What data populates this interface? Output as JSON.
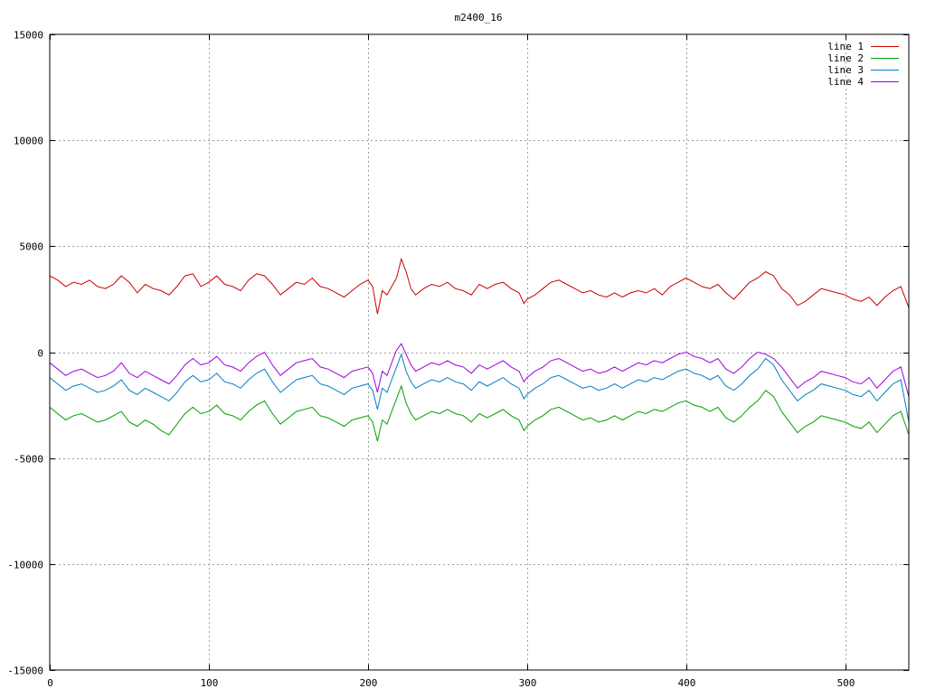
{
  "chart_data": {
    "type": "line",
    "title": "m2400_16",
    "xlabel": "",
    "ylabel": "",
    "xlim": [
      0,
      540
    ],
    "ylim": [
      -15000,
      15000
    ],
    "x_ticks": [
      0,
      100,
      200,
      300,
      400,
      500
    ],
    "y_ticks": [
      15000,
      10000,
      5000,
      0,
      -5000,
      -10000,
      -15000
    ],
    "grid": true,
    "legend_position": "top-right",
    "series": [
      {
        "name": "line 1",
        "color": "#cc0000",
        "x": [
          0,
          5,
          10,
          15,
          20,
          25,
          30,
          35,
          40,
          45,
          50,
          55,
          60,
          65,
          70,
          75,
          80,
          85,
          90,
          95,
          100,
          105,
          110,
          115,
          120,
          125,
          130,
          135,
          140,
          145,
          150,
          155,
          160,
          165,
          170,
          175,
          180,
          185,
          190,
          195,
          200,
          203,
          206,
          209,
          212,
          215,
          218,
          221,
          224,
          227,
          230,
          235,
          240,
          245,
          250,
          255,
          260,
          265,
          270,
          275,
          280,
          285,
          290,
          295,
          298,
          300,
          305,
          310,
          315,
          320,
          325,
          330,
          335,
          340,
          345,
          350,
          355,
          360,
          365,
          370,
          375,
          380,
          385,
          390,
          395,
          400,
          405,
          410,
          415,
          420,
          425,
          430,
          435,
          440,
          445,
          450,
          455,
          460,
          465,
          470,
          475,
          480,
          485,
          490,
          495,
          500,
          505,
          510,
          515,
          520,
          525,
          530,
          535,
          540
        ],
        "y": [
          3600,
          3400,
          3100,
          3300,
          3200,
          3400,
          3100,
          3000,
          3200,
          3600,
          3300,
          2800,
          3200,
          3000,
          2900,
          2700,
          3100,
          3600,
          3700,
          3100,
          3300,
          3600,
          3200,
          3100,
          2900,
          3400,
          3700,
          3600,
          3200,
          2700,
          3000,
          3300,
          3200,
          3500,
          3100,
          3000,
          2800,
          2600,
          2900,
          3200,
          3400,
          3100,
          1800,
          2900,
          2700,
          3100,
          3500,
          4400,
          3800,
          3000,
          2700,
          3000,
          3200,
          3100,
          3300,
          3000,
          2900,
          2700,
          3200,
          3000,
          3200,
          3300,
          3000,
          2800,
          2300,
          2500,
          2700,
          3000,
          3300,
          3400,
          3200,
          3000,
          2800,
          2900,
          2700,
          2600,
          2800,
          2600,
          2800,
          2900,
          2800,
          3000,
          2700,
          3100,
          3300,
          3500,
          3300,
          3100,
          3000,
          3200,
          2800,
          2500,
          2900,
          3300,
          3500,
          3800,
          3600,
          3000,
          2700,
          2200,
          2400,
          2700,
          3000,
          2900,
          2800,
          2700,
          2500,
          2400,
          2600,
          2200,
          2600,
          2900,
          3100,
          2100
        ]
      },
      {
        "name": "line 2",
        "color": "#00a000",
        "x": [
          0,
          5,
          10,
          15,
          20,
          25,
          30,
          35,
          40,
          45,
          50,
          55,
          60,
          65,
          70,
          75,
          80,
          85,
          90,
          95,
          100,
          105,
          110,
          115,
          120,
          125,
          130,
          135,
          140,
          145,
          150,
          155,
          160,
          165,
          170,
          175,
          180,
          185,
          190,
          195,
          200,
          203,
          206,
          209,
          212,
          215,
          218,
          221,
          224,
          227,
          230,
          235,
          240,
          245,
          250,
          255,
          260,
          265,
          270,
          275,
          280,
          285,
          290,
          295,
          298,
          300,
          305,
          310,
          315,
          320,
          325,
          330,
          335,
          340,
          345,
          350,
          355,
          360,
          365,
          370,
          375,
          380,
          385,
          390,
          395,
          400,
          405,
          410,
          415,
          420,
          425,
          430,
          435,
          440,
          445,
          450,
          455,
          460,
          465,
          470,
          475,
          480,
          485,
          490,
          495,
          500,
          505,
          510,
          515,
          520,
          525,
          530,
          535,
          540
        ],
        "y": [
          -2600,
          -2900,
          -3200,
          -3000,
          -2900,
          -3100,
          -3300,
          -3200,
          -3000,
          -2800,
          -3300,
          -3500,
          -3200,
          -3400,
          -3700,
          -3900,
          -3400,
          -2900,
          -2600,
          -2900,
          -2800,
          -2500,
          -2900,
          -3000,
          -3200,
          -2800,
          -2500,
          -2300,
          -2900,
          -3400,
          -3100,
          -2800,
          -2700,
          -2600,
          -3000,
          -3100,
          -3300,
          -3500,
          -3200,
          -3100,
          -3000,
          -3300,
          -4200,
          -3200,
          -3400,
          -2800,
          -2200,
          -1600,
          -2400,
          -2900,
          -3200,
          -3000,
          -2800,
          -2900,
          -2700,
          -2900,
          -3000,
          -3300,
          -2900,
          -3100,
          -2900,
          -2700,
          -3000,
          -3200,
          -3700,
          -3500,
          -3200,
          -3000,
          -2700,
          -2600,
          -2800,
          -3000,
          -3200,
          -3100,
          -3300,
          -3200,
          -3000,
          -3200,
          -3000,
          -2800,
          -2900,
          -2700,
          -2800,
          -2600,
          -2400,
          -2300,
          -2500,
          -2600,
          -2800,
          -2600,
          -3100,
          -3300,
          -3000,
          -2600,
          -2300,
          -1800,
          -2100,
          -2800,
          -3300,
          -3800,
          -3500,
          -3300,
          -3000,
          -3100,
          -3200,
          -3300,
          -3500,
          -3600,
          -3300,
          -3800,
          -3400,
          -3000,
          -2800,
          -3900
        ]
      },
      {
        "name": "line 3",
        "color": "#0080c0",
        "x": [
          0,
          5,
          10,
          15,
          20,
          25,
          30,
          35,
          40,
          45,
          50,
          55,
          60,
          65,
          70,
          75,
          80,
          85,
          90,
          95,
          100,
          105,
          110,
          115,
          120,
          125,
          130,
          135,
          140,
          145,
          150,
          155,
          160,
          165,
          170,
          175,
          180,
          185,
          190,
          195,
          200,
          203,
          206,
          209,
          212,
          215,
          218,
          221,
          224,
          227,
          230,
          235,
          240,
          245,
          250,
          255,
          260,
          265,
          270,
          275,
          280,
          285,
          290,
          295,
          298,
          300,
          305,
          310,
          315,
          320,
          325,
          330,
          335,
          340,
          345,
          350,
          355,
          360,
          365,
          370,
          375,
          380,
          385,
          390,
          395,
          400,
          405,
          410,
          415,
          420,
          425,
          430,
          435,
          440,
          445,
          450,
          455,
          460,
          465,
          470,
          475,
          480,
          485,
          490,
          495,
          500,
          505,
          510,
          515,
          520,
          525,
          530,
          535,
          540
        ],
        "y": [
          -1200,
          -1500,
          -1800,
          -1600,
          -1500,
          -1700,
          -1900,
          -1800,
          -1600,
          -1300,
          -1800,
          -2000,
          -1700,
          -1900,
          -2100,
          -2300,
          -1900,
          -1400,
          -1100,
          -1400,
          -1300,
          -1000,
          -1400,
          -1500,
          -1700,
          -1300,
          -1000,
          -800,
          -1400,
          -1900,
          -1600,
          -1300,
          -1200,
          -1100,
          -1500,
          -1600,
          -1800,
          -2000,
          -1700,
          -1600,
          -1500,
          -1800,
          -2700,
          -1700,
          -1900,
          -1300,
          -700,
          -100,
          -900,
          -1400,
          -1700,
          -1500,
          -1300,
          -1400,
          -1200,
          -1400,
          -1500,
          -1800,
          -1400,
          -1600,
          -1400,
          -1200,
          -1500,
          -1700,
          -2200,
          -2000,
          -1700,
          -1500,
          -1200,
          -1100,
          -1300,
          -1500,
          -1700,
          -1600,
          -1800,
          -1700,
          -1500,
          -1700,
          -1500,
          -1300,
          -1400,
          -1200,
          -1300,
          -1100,
          -900,
          -800,
          -1000,
          -1100,
          -1300,
          -1100,
          -1600,
          -1800,
          -1500,
          -1100,
          -800,
          -300,
          -600,
          -1300,
          -1800,
          -2300,
          -2000,
          -1800,
          -1500,
          -1600,
          -1700,
          -1800,
          -2000,
          -2100,
          -1800,
          -2300,
          -1900,
          -1500,
          -1300,
          -3300
        ]
      },
      {
        "name": "line 4",
        "color": "#a000e0",
        "x": [
          0,
          5,
          10,
          15,
          20,
          25,
          30,
          35,
          40,
          45,
          50,
          55,
          60,
          65,
          70,
          75,
          80,
          85,
          90,
          95,
          100,
          105,
          110,
          115,
          120,
          125,
          130,
          135,
          140,
          145,
          150,
          155,
          160,
          165,
          170,
          175,
          180,
          185,
          190,
          195,
          200,
          203,
          206,
          209,
          212,
          215,
          218,
          221,
          224,
          227,
          230,
          235,
          240,
          245,
          250,
          255,
          260,
          265,
          270,
          275,
          280,
          285,
          290,
          295,
          298,
          300,
          305,
          310,
          315,
          320,
          325,
          330,
          335,
          340,
          345,
          350,
          355,
          360,
          365,
          370,
          375,
          380,
          385,
          390,
          395,
          400,
          405,
          410,
          415,
          420,
          425,
          430,
          435,
          440,
          445,
          450,
          455,
          460,
          465,
          470,
          475,
          480,
          485,
          490,
          495,
          500,
          505,
          510,
          515,
          520,
          525,
          530,
          535,
          540
        ],
        "y": [
          -500,
          -800,
          -1100,
          -900,
          -800,
          -1000,
          -1200,
          -1100,
          -900,
          -500,
          -1000,
          -1200,
          -900,
          -1100,
          -1300,
          -1500,
          -1100,
          -600,
          -300,
          -600,
          -500,
          -200,
          -600,
          -700,
          -900,
          -500,
          -200,
          0,
          -600,
          -1100,
          -800,
          -500,
          -400,
          -300,
          -700,
          -800,
          -1000,
          -1200,
          -900,
          -800,
          -700,
          -1000,
          -1900,
          -900,
          -1100,
          -500,
          100,
          400,
          -100,
          -600,
          -900,
          -700,
          -500,
          -600,
          -400,
          -600,
          -700,
          -1000,
          -600,
          -800,
          -600,
          -400,
          -700,
          -900,
          -1400,
          -1200,
          -900,
          -700,
          -400,
          -300,
          -500,
          -700,
          -900,
          -800,
          -1000,
          -900,
          -700,
          -900,
          -700,
          -500,
          -600,
          -400,
          -500,
          -300,
          -100,
          0,
          -200,
          -300,
          -500,
          -300,
          -800,
          -1000,
          -700,
          -300,
          0,
          -100,
          -300,
          -700,
          -1200,
          -1700,
          -1400,
          -1200,
          -900,
          -1000,
          -1100,
          -1200,
          -1400,
          -1500,
          -1200,
          -1700,
          -1300,
          -900,
          -700,
          -2100
        ]
      }
    ]
  }
}
